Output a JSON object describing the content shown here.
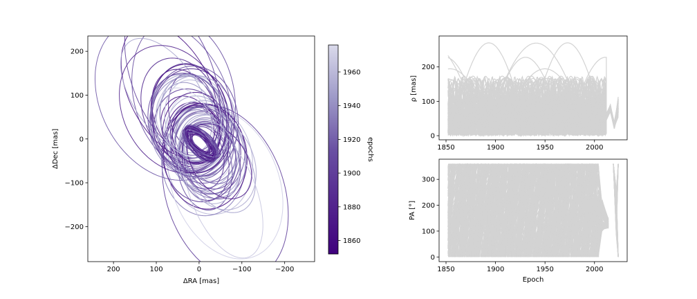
{
  "chart_data": [
    {
      "type": "line",
      "title": "",
      "xlabel": "ΔRA [mas]",
      "ylabel": "ΔDec [mas]",
      "xlim": [
        260,
        -270
      ],
      "ylim": [
        -280,
        235
      ],
      "x_inverted": true,
      "xticks": [
        200,
        100,
        0,
        -100,
        -200
      ],
      "yticks": [
        200,
        100,
        0,
        -100,
        -200
      ],
      "xticklabels": [
        "200",
        "100",
        "0",
        "−100",
        "−200"
      ],
      "yticklabels": [
        "200",
        "100",
        "0",
        "−100",
        "−200"
      ],
      "grid": false,
      "colormap": "Purples",
      "colorbar": {
        "label": "epochs",
        "range": [
          1852,
          1976
        ],
        "ticks": [
          1860,
          1880,
          1900,
          1920,
          1940,
          1960
        ],
        "ticklabels": [
          "1860",
          "1880",
          "1900",
          "1920",
          "1940",
          "1960"
        ],
        "color_low": "#3f007d",
        "color_high": "#dadaeb"
      },
      "orbit_count": 64
    },
    {
      "type": "line",
      "title": "",
      "xlabel": "",
      "ylabel": "ρ [mas]",
      "xlim": [
        1843,
        2033
      ],
      "ylim": [
        -12,
        290
      ],
      "xticks": [
        1850,
        1900,
        1950,
        2000
      ],
      "xticklabels": [
        "1850",
        "1900",
        "1950",
        "2000"
      ],
      "yticks": [
        0,
        100,
        200
      ],
      "yticklabels": [
        "0",
        "100",
        "200"
      ],
      "data_range_x": [
        1852,
        2024
      ],
      "grid": false,
      "line_color": "#d3d3d3",
      "series_count": 90
    },
    {
      "type": "line",
      "title": "",
      "xlabel": "Epoch",
      "ylabel": "PA [°]",
      "xlim": [
        1843,
        2033
      ],
      "ylim": [
        -18,
        378
      ],
      "xticks": [
        1850,
        1900,
        1950,
        2000
      ],
      "xticklabels": [
        "1850",
        "1900",
        "1950",
        "2000"
      ],
      "yticks": [
        0,
        100,
        200,
        300
      ],
      "yticklabels": [
        "0",
        "100",
        "200",
        "300"
      ],
      "data_range_x": [
        1852,
        2024
      ],
      "grid": false,
      "line_color": "#d3d3d3",
      "series_count": 90
    }
  ]
}
